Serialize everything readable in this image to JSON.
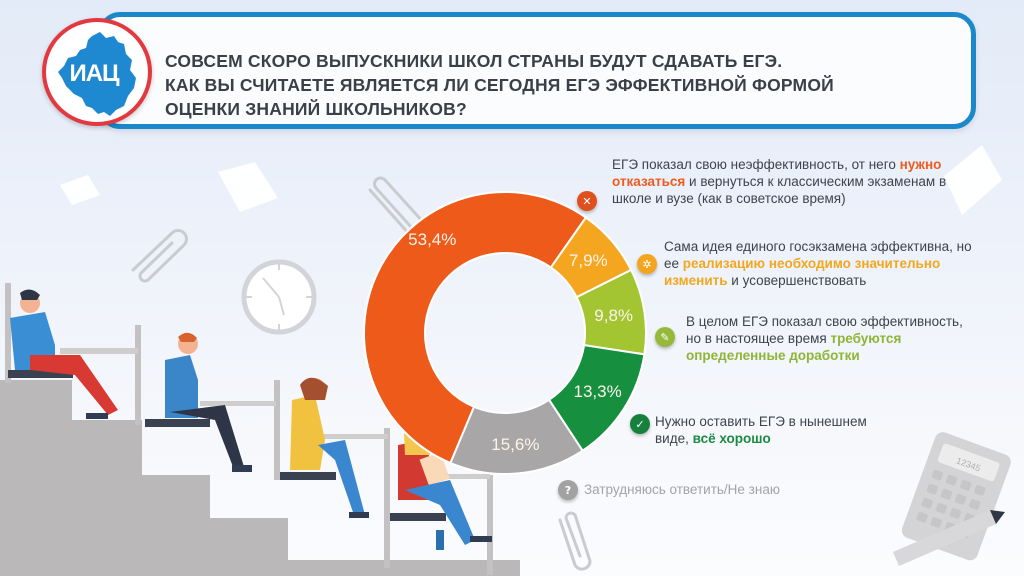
{
  "header": {
    "logo_text": "ИАЦ",
    "title_lines": [
      "Совсем скоро выпускники школ страны будут сдавать ЕГЭ.",
      "Как вы считаете является ли сегодня ЕГЭ эффективной формой",
      "оценки знаний школьников?"
    ]
  },
  "colors": {
    "header_border": "#1a88c9",
    "logo_ring": "#e1393f",
    "logo_fill": "#1e88d1",
    "orange": "#ee5a1a",
    "yellow": "#f4a620",
    "light_green": "#a2c531",
    "green": "#16903f",
    "gray": "#a8a6a6"
  },
  "chart_data": {
    "type": "pie",
    "subtype": "donut",
    "title": "Совсем скоро выпускники школ страны будут сдавать ЕГЭ. Как вы считаете является ли сегодня ЕГЭ эффективной формой оценки знаний школьников?",
    "categories": [
      "ЕГЭ показал свою неэффективность, от него нужно отказаться и вернуться к классическим экзаменам в школе и вузе (как в советское время)",
      "Сама идея единого госэкзамена эффективна, но ее реализацию необходимо значительно изменить и усовершенствовать",
      "В целом ЕГЭ показал свою эффективность, но в настоящее время требуются определенные доработки",
      "Нужно оставить ЕГЭ в нынешнем виде, всё хорошо",
      "Затрудняюсь ответить/Не знаю"
    ],
    "values": [
      53.4,
      7.9,
      9.8,
      13.3,
      15.6
    ],
    "labels": [
      "53,4%",
      "7,9%",
      "9,8%",
      "13,3%",
      "15,6%"
    ],
    "colors": [
      "#ee5a1a",
      "#f4a620",
      "#a2c531",
      "#16903f",
      "#a8a6a6"
    ],
    "unit": "%",
    "legend_position": "right"
  },
  "legend": [
    {
      "icon": "close-icon",
      "glyph": "✕",
      "color": "#e0501c",
      "parts": [
        {
          "text": "ЕГЭ показал свою неэффективность, от него ",
          "hl": false
        },
        {
          "text": "нужно отказаться",
          "hl": true
        },
        {
          "text": " и вернуться к классическим экзаменам в школе и вузе (как в советское время)",
          "hl": false
        }
      ],
      "highlight_color": "#ef5a1d"
    },
    {
      "icon": "gear-icon",
      "glyph": "✲",
      "color": "#f3a51f",
      "parts": [
        {
          "text": "Сама идея единого госэкзамена эффективна, но ее ",
          "hl": false
        },
        {
          "text": "реализацию необходимо значительно изменить",
          "hl": true
        },
        {
          "text": " и усовершенствовать",
          "hl": false
        }
      ],
      "highlight_color": "#f2a71e"
    },
    {
      "icon": "pencil-icon",
      "glyph": "✎",
      "color": "#97b93a",
      "parts": [
        {
          "text": "В целом ЕГЭ показал свою эффективность, но в настоящее время ",
          "hl": false
        },
        {
          "text": "требуются определенные доработки",
          "hl": true
        }
      ],
      "highlight_color": "#8fb536"
    },
    {
      "icon": "check-icon",
      "glyph": "✓",
      "color": "#17803d",
      "parts": [
        {
          "text": "Нужно оставить ЕГЭ в нынешнем виде, ",
          "hl": false
        },
        {
          "text": "всё хорошо",
          "hl": true
        }
      ],
      "highlight_color": "#1a8a43"
    },
    {
      "icon": "question-icon",
      "glyph": "?",
      "color": "#a2a2a2",
      "parts": [
        {
          "text": "Затрудняюсь ответить/Не знаю",
          "hl": false
        }
      ],
      "text_color": "#a4a4a6"
    }
  ],
  "decor": {
    "calculator_display": "12345"
  }
}
